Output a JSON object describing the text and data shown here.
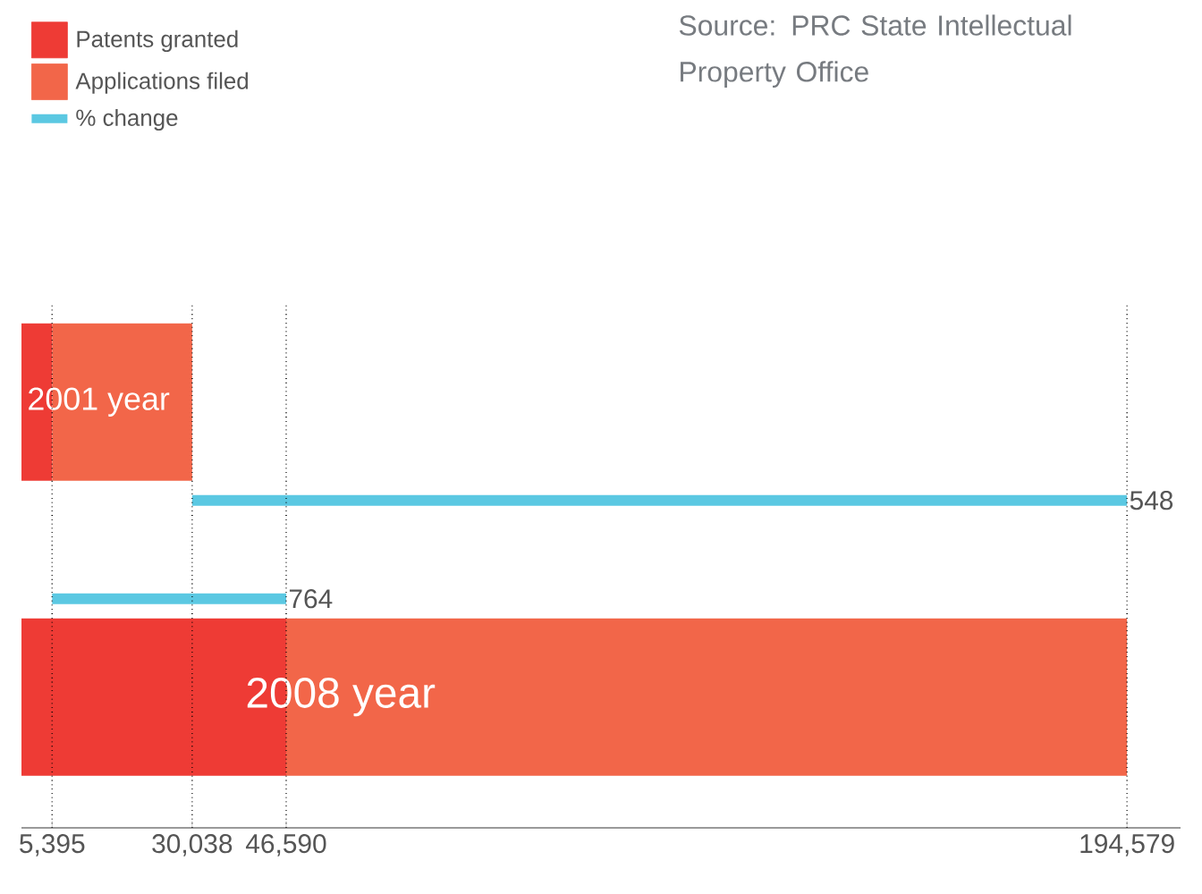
{
  "chart_data": {
    "type": "bar",
    "orientation": "horizontal",
    "stacked": true,
    "categories": [
      "2001 year",
      null,
      null,
      "2008 year"
    ],
    "series": [
      {
        "name": "Patents granted",
        "color": "#ee3b35",
        "values": [
          5395,
          null,
          null,
          46590
        ]
      },
      {
        "name": "Applications filed",
        "color": "#f26649",
        "values": [
          24643,
          null,
          null,
          147989
        ]
      },
      {
        "name": "% change",
        "color": "#5bc8e2",
        "base": [
          null,
          30038,
          5395,
          null
        ],
        "values": [
          null,
          164541,
          41195,
          null
        ]
      }
    ],
    "xlim": [
      0,
      204000
    ],
    "xticks": [
      {
        "value": 5395,
        "label": "5,395"
      },
      {
        "value": 30038,
        "label": "30,038"
      },
      {
        "value": 46590,
        "label": "46,590"
      },
      {
        "value": 194579,
        "label": "194,579"
      }
    ],
    "grid": "x",
    "legend": "top left",
    "annotations": [
      "548",
      "764",
      "Source: PRC State Intellectual Property Office"
    ]
  }
}
